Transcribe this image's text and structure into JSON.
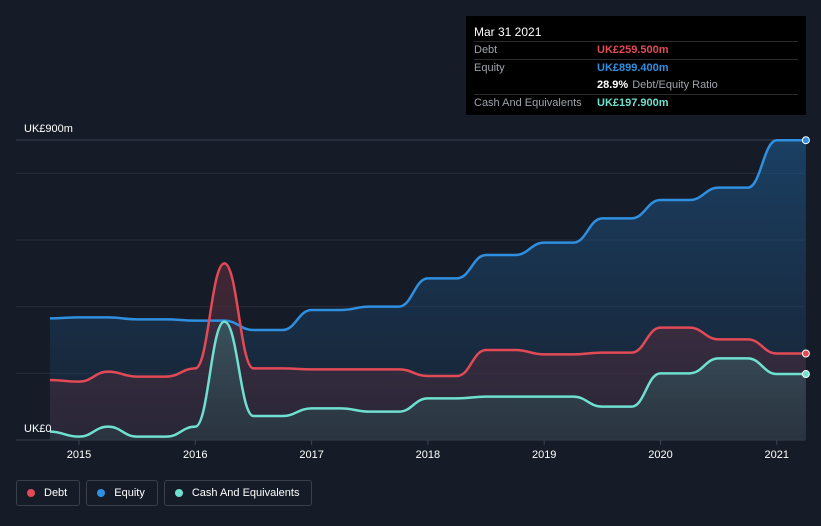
{
  "tooltip": {
    "date": "Mar 31 2021",
    "debt_label": "Debt",
    "debt_value": "UK£259.500m",
    "equity_label": "Equity",
    "equity_value": "UK£899.400m",
    "ratio_pct": "28.9%",
    "ratio_text": "Debt/Equity Ratio",
    "cash_label": "Cash And Equivalents",
    "cash_value": "UK£197.900m"
  },
  "y_axis": {
    "top_label": "UK£900m",
    "bottom_label": "UK£0"
  },
  "legend": {
    "debt": "Debt",
    "equity": "Equity",
    "cash": "Cash And Equivalents"
  },
  "colors": {
    "debt": "#e24a56",
    "equity": "#2f8fe0",
    "cash": "#6fe0d0",
    "background": "#161c27"
  },
  "chart_data": {
    "type": "area",
    "x_ticks": [
      2015,
      2016,
      2017,
      2018,
      2019,
      2020,
      2021
    ],
    "xlim": [
      2014.7,
      2021.25
    ],
    "ylim": [
      0,
      900
    ],
    "series": [
      {
        "name": "Debt",
        "points": [
          [
            2014.75,
            180
          ],
          [
            2015.0,
            175
          ],
          [
            2015.25,
            205
          ],
          [
            2015.5,
            190
          ],
          [
            2015.75,
            190
          ],
          [
            2016.0,
            215
          ],
          [
            2016.25,
            530
          ],
          [
            2016.5,
            215
          ],
          [
            2016.75,
            215
          ],
          [
            2017.0,
            212
          ],
          [
            2017.25,
            212
          ],
          [
            2017.5,
            212
          ],
          [
            2017.75,
            212
          ],
          [
            2018.0,
            192
          ],
          [
            2018.25,
            192
          ],
          [
            2018.5,
            270
          ],
          [
            2018.75,
            270
          ],
          [
            2019.0,
            257
          ],
          [
            2019.25,
            257
          ],
          [
            2019.5,
            262
          ],
          [
            2019.75,
            262
          ],
          [
            2020.0,
            337
          ],
          [
            2020.25,
            337
          ],
          [
            2020.5,
            302
          ],
          [
            2020.75,
            302
          ],
          [
            2021.0,
            259.5
          ],
          [
            2021.25,
            259.5
          ]
        ]
      },
      {
        "name": "Equity",
        "points": [
          [
            2014.75,
            365
          ],
          [
            2015.0,
            368
          ],
          [
            2015.25,
            368
          ],
          [
            2015.5,
            362
          ],
          [
            2015.75,
            362
          ],
          [
            2016.0,
            358
          ],
          [
            2016.25,
            358
          ],
          [
            2016.5,
            330
          ],
          [
            2016.75,
            330
          ],
          [
            2017.0,
            390
          ],
          [
            2017.25,
            390
          ],
          [
            2017.5,
            400
          ],
          [
            2017.75,
            400
          ],
          [
            2018.0,
            485
          ],
          [
            2018.25,
            485
          ],
          [
            2018.5,
            555
          ],
          [
            2018.75,
            555
          ],
          [
            2019.0,
            592
          ],
          [
            2019.25,
            592
          ],
          [
            2019.5,
            665
          ],
          [
            2019.75,
            665
          ],
          [
            2020.0,
            720
          ],
          [
            2020.25,
            720
          ],
          [
            2020.5,
            757
          ],
          [
            2020.75,
            757
          ],
          [
            2021.0,
            899.4
          ],
          [
            2021.25,
            899.4
          ]
        ]
      },
      {
        "name": "Cash And Equivalents",
        "points": [
          [
            2014.75,
            25
          ],
          [
            2015.0,
            10
          ],
          [
            2015.25,
            40
          ],
          [
            2015.5,
            10
          ],
          [
            2015.75,
            10
          ],
          [
            2016.0,
            40
          ],
          [
            2016.25,
            355
          ],
          [
            2016.5,
            72
          ],
          [
            2016.75,
            72
          ],
          [
            2017.0,
            95
          ],
          [
            2017.25,
            95
          ],
          [
            2017.5,
            85
          ],
          [
            2017.75,
            85
          ],
          [
            2018.0,
            125
          ],
          [
            2018.25,
            125
          ],
          [
            2018.5,
            130
          ],
          [
            2018.75,
            130
          ],
          [
            2019.0,
            130
          ],
          [
            2019.25,
            130
          ],
          [
            2019.5,
            100
          ],
          [
            2019.75,
            100
          ],
          [
            2020.0,
            200
          ],
          [
            2020.25,
            200
          ],
          [
            2020.5,
            245
          ],
          [
            2020.75,
            245
          ],
          [
            2021.0,
            197.9
          ],
          [
            2021.25,
            197.9
          ]
        ]
      }
    ]
  }
}
